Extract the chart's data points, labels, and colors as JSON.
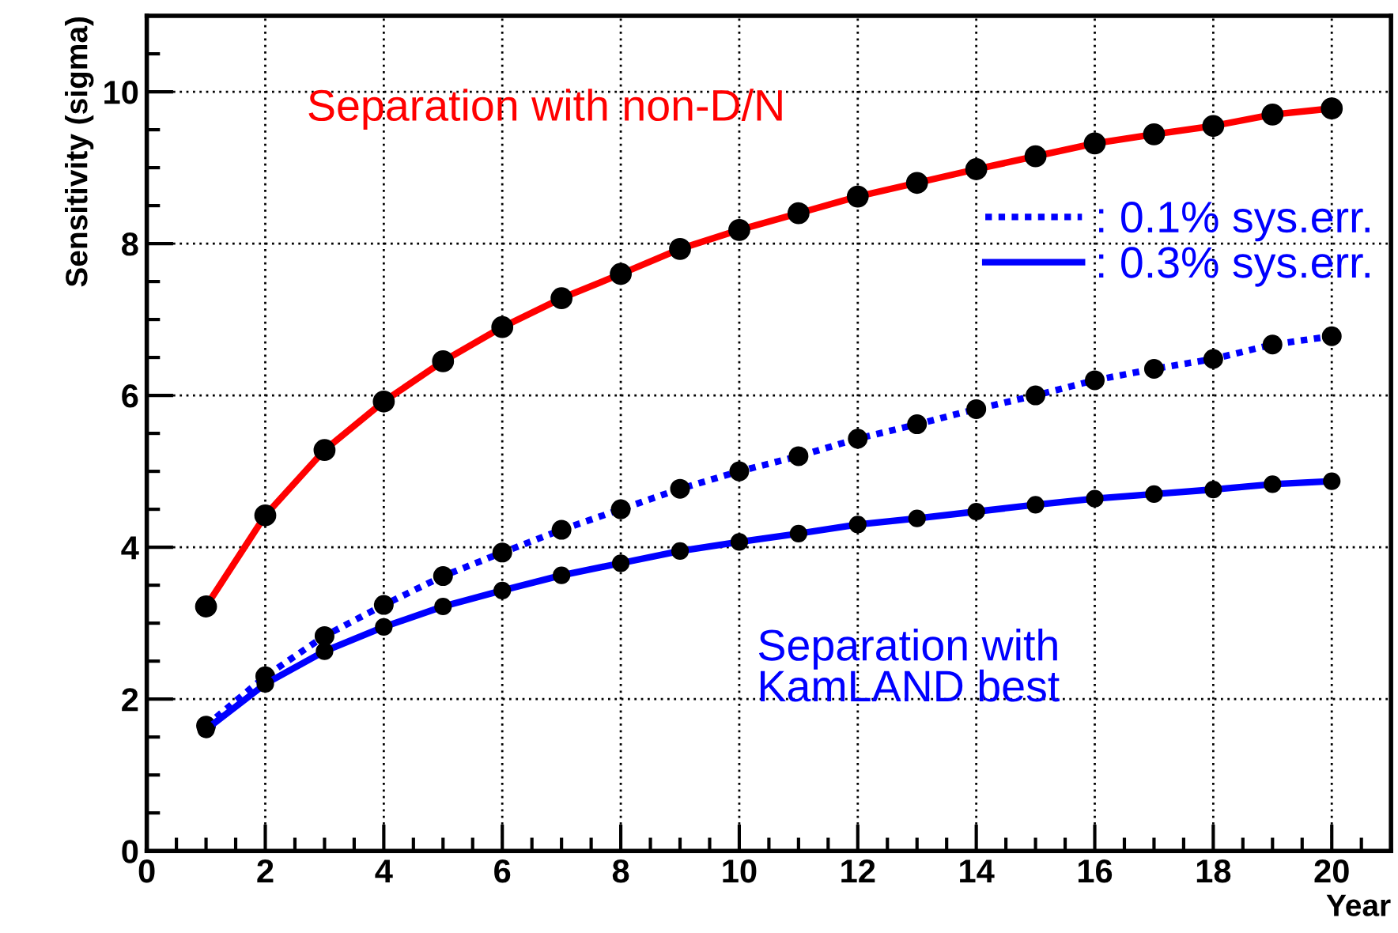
{
  "chart_data": {
    "type": "line",
    "xlabel": "Year",
    "ylabel": "Sensitivity (sigma)",
    "x": [
      1,
      2,
      3,
      4,
      5,
      6,
      7,
      8,
      9,
      10,
      11,
      12,
      13,
      14,
      15,
      16,
      17,
      18,
      19,
      20
    ],
    "series": [
      {
        "name": "Separation with non-D/N",
        "color": "#ff0000",
        "line_style": "solid",
        "values": [
          3.22,
          4.42,
          5.28,
          5.92,
          6.45,
          6.9,
          7.28,
          7.6,
          7.93,
          8.18,
          8.4,
          8.62,
          8.8,
          8.98,
          9.15,
          9.32,
          9.44,
          9.55,
          9.7,
          9.78
        ]
      },
      {
        "name": ": 0.1% sys.err.",
        "color": "#0000ff",
        "line_style": "dotted",
        "values": [
          1.65,
          2.3,
          2.83,
          3.24,
          3.62,
          3.93,
          4.23,
          4.5,
          4.77,
          5.0,
          5.2,
          5.43,
          5.62,
          5.82,
          6.0,
          6.2,
          6.35,
          6.48,
          6.67,
          6.78
        ]
      },
      {
        "name": ": 0.3% sys.err.",
        "color": "#0000ff",
        "line_style": "solid",
        "values": [
          1.6,
          2.2,
          2.63,
          2.95,
          3.22,
          3.43,
          3.63,
          3.79,
          3.95,
          4.07,
          4.18,
          4.3,
          4.38,
          4.47,
          4.56,
          4.64,
          4.7,
          4.76,
          4.83,
          4.87
        ]
      }
    ],
    "annotations": [
      "Separation with\nKamLAND best"
    ],
    "xlim": [
      0,
      21
    ],
    "ylim": [
      0,
      11
    ],
    "xticks": [
      0,
      2,
      4,
      6,
      8,
      10,
      12,
      14,
      16,
      18,
      20
    ],
    "yticks": [
      0,
      2,
      4,
      6,
      8,
      10
    ],
    "grid": true,
    "marker": "circle",
    "legend": "top right"
  }
}
